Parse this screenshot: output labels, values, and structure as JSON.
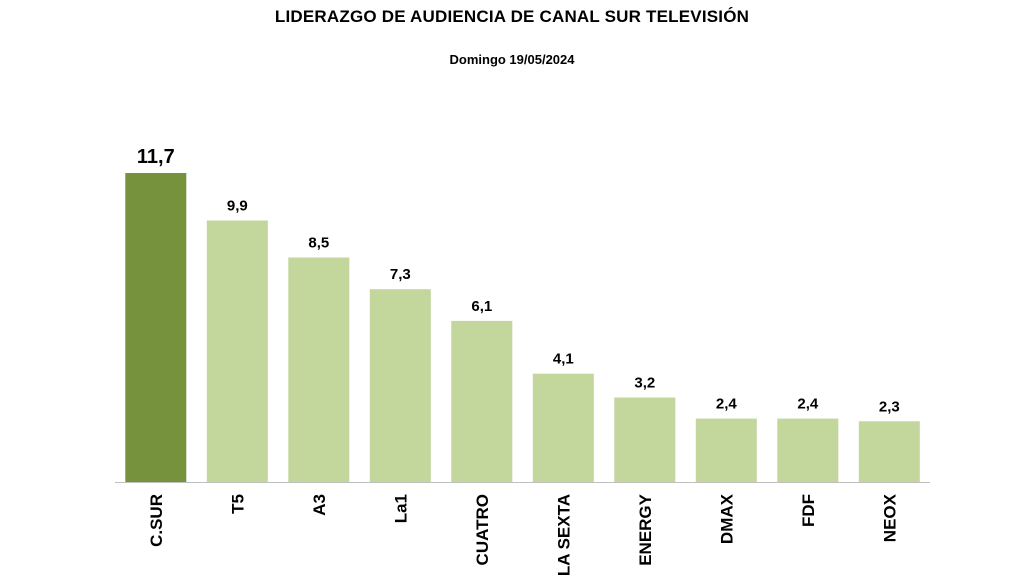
{
  "chart_data": {
    "type": "bar",
    "title": "LIDERAZGO DE AUDIENCIA DE CANAL SUR TELEVISIÓN",
    "subtitle": "Domingo 19/05/2024",
    "xlabel": "",
    "ylabel": "",
    "categories": [
      "C.SUR",
      "T5",
      "A3",
      "La1",
      "CUATRO",
      "LA SEXTA",
      "ENERGY",
      "DMAX",
      "FDF",
      "NEOX"
    ],
    "values": [
      11.7,
      9.9,
      8.5,
      7.3,
      6.1,
      4.1,
      3.2,
      2.4,
      2.4,
      2.3
    ],
    "value_labels": [
      "11,7",
      "9,9",
      "8,5",
      "7,3",
      "6,1",
      "4,1",
      "3,2",
      "2,4",
      "2,4",
      "2,3"
    ],
    "highlight_index": 0,
    "ylim": [
      0,
      11.7
    ],
    "grid": false,
    "legend": "none"
  },
  "colors": {
    "highlight_bar": "#76923c",
    "bar": "#c3d69b",
    "axis": "#bfbfbf"
  }
}
